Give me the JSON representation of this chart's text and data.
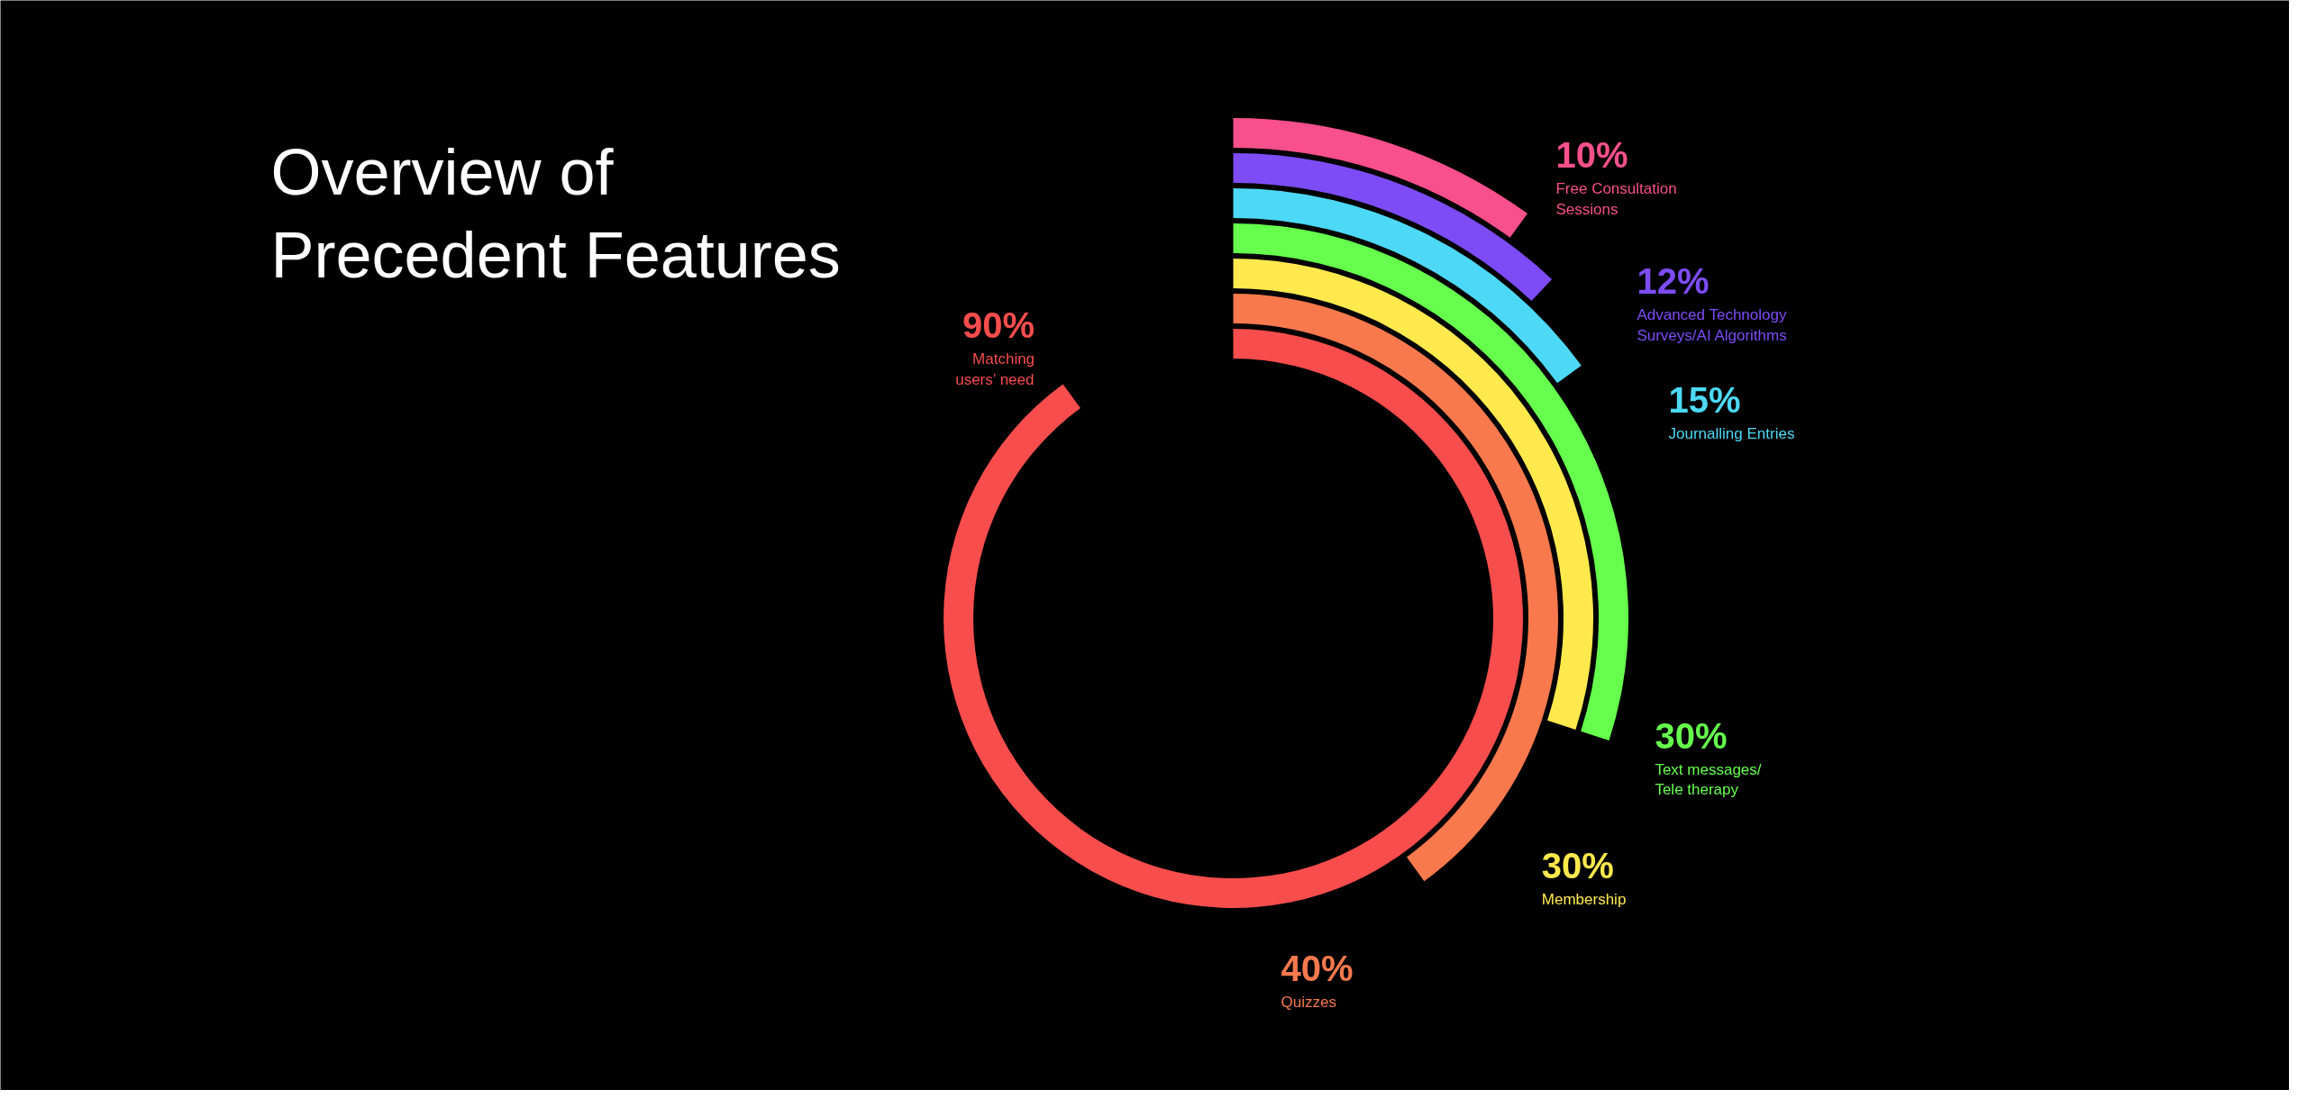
{
  "chart_data": {
    "type": "other",
    "title": "Overview of\nPrecedent Features",
    "categories": [
      "Free Consultation\nSessions",
      "Advanced Technology\nSurveys/AI Algorithms",
      "Journalling Entries",
      "Text messages/\nTele therapy",
      "Membership",
      "Quizzes",
      "Matching\nusers’ need"
    ],
    "values": [
      10,
      12,
      15,
      30,
      30,
      40,
      90
    ],
    "colors": [
      "#f7508a",
      "#7d4cf7",
      "#4dd9f5",
      "#66ff4d",
      "#ffe94d",
      "#f7794d",
      "#f74d4d"
    ],
    "value_labels": [
      "10%",
      "12%",
      "15%",
      "30%",
      "30%",
      "40%",
      "90%"
    ]
  }
}
